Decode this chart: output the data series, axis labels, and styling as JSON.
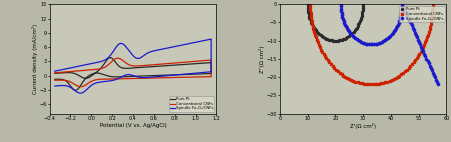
{
  "left": {
    "xlabel": "Potential (V vs. Ag/AgCl)",
    "ylabel": "Current density (mA/cm²)",
    "xlim": [
      -0.4,
      1.2
    ],
    "ylim": [
      -8,
      15
    ],
    "xticks": [
      -0.4,
      -0.2,
      0.0,
      0.2,
      0.4,
      0.6,
      0.8,
      1.0,
      1.2
    ],
    "yticks": [
      -6,
      -3,
      0,
      3,
      6,
      9,
      12,
      15
    ],
    "legend": [
      "Pure Pt",
      "Conventional CNFs",
      "Spindle Fe₂O₃/CNFs"
    ],
    "colors": [
      "#2a2a2a",
      "#cc2200",
      "#1a1acc"
    ],
    "bg_color": "#c8c8b8"
  },
  "right": {
    "xlabel": "Z'(Ω cm²)",
    "ylabel": "Z''(Ω cm²)",
    "xlim": [
      0,
      60
    ],
    "ylim": [
      -30,
      0
    ],
    "xticks": [
      0,
      10,
      20,
      30,
      40,
      50,
      60
    ],
    "yticks": [
      -30,
      -25,
      -20,
      -15,
      -10,
      -5,
      0
    ],
    "legend": [
      "Pure Pt",
      "Conventional CNFs",
      "Spindle Fe₂O₃/CNFs"
    ],
    "colors": [
      "#2a2a2a",
      "#cc2200",
      "#1a1acc"
    ],
    "bg_color": "#c8c8b8"
  }
}
